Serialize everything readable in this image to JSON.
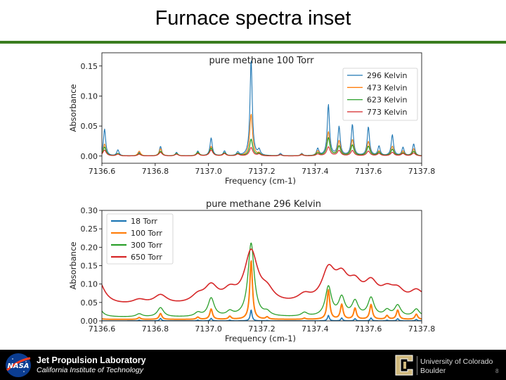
{
  "slide": {
    "title": "Furnace spectra inset",
    "page_number": "8"
  },
  "footer": {
    "nasa_logo_text": "NASA",
    "jpl_name": "Jet Propulsion Laboratory",
    "jpl_subtitle": "California Institute of Technology",
    "cu_name_line1": "University of Colorado",
    "cu_name_line2": "Boulder",
    "colors": {
      "background": "#000000",
      "cu_gold": "#cfb87c",
      "nasa_blue": "#0b3d91",
      "nasa_red": "#fc3d21"
    }
  },
  "chart_data": [
    {
      "type": "line",
      "title": "pure methane 100 Torr",
      "xlabel": "Frequency (cm-1)",
      "ylabel": "Absorbance",
      "xlim": [
        7136.6,
        7137.8
      ],
      "ylim": [
        -0.012,
        0.172
      ],
      "xticks": [
        7136.6,
        7136.8,
        7137.0,
        7137.2,
        7137.4,
        7137.6,
        7137.8
      ],
      "xtick_labels": [
        "7136.6",
        "7136.8",
        "7137.0",
        "7137.2",
        "7137.4",
        "7137.6",
        "7137.8"
      ],
      "yticks": [
        0.0,
        0.05,
        0.1,
        0.15
      ],
      "ytick_labels": [
        "0.00",
        "0.05",
        "0.10",
        "0.15"
      ],
      "grid": false,
      "legend": "top-right",
      "baseline": [
        0.0,
        0.0,
        0.0,
        0.0
      ],
      "series": [
        {
          "name": "296 Kelvin",
          "color": "#1f77b4",
          "width": 0.005
        },
        {
          "name": "473 Kelvin",
          "color": "#ff7f0e",
          "width": 0.006
        },
        {
          "name": "623 Kelvin",
          "color": "#2ca02c",
          "width": 0.007
        },
        {
          "name": "773 Kelvin",
          "color": "#d62728",
          "width": 0.0075
        }
      ],
      "peaks": [
        {
          "x": 7136.61,
          "a": [
            0.045,
            0.02,
            0.015,
            0.01
          ]
        },
        {
          "x": 7136.66,
          "a": [
            0.01,
            0.004,
            0.004,
            0.003
          ]
        },
        {
          "x": 7136.74,
          "a": [
            0.006,
            0.008,
            0.004,
            0.003
          ]
        },
        {
          "x": 7136.82,
          "a": [
            0.016,
            0.012,
            0.008,
            0.006
          ]
        },
        {
          "x": 7136.88,
          "a": [
            0.006,
            0.004,
            0.004,
            0.003
          ]
        },
        {
          "x": 7136.96,
          "a": [
            0.008,
            0.005,
            0.006,
            0.004
          ]
        },
        {
          "x": 7137.01,
          "a": [
            0.03,
            0.016,
            0.013,
            0.01
          ]
        },
        {
          "x": 7137.06,
          "a": [
            0.008,
            0.004,
            0.005,
            0.004
          ]
        },
        {
          "x": 7137.11,
          "a": [
            0.006,
            0.003,
            0.004,
            0.003
          ]
        },
        {
          "x": 7137.16,
          "a": [
            0.16,
            0.07,
            0.028,
            0.014
          ]
        },
        {
          "x": 7137.19,
          "a": [
            0.009,
            0.004,
            0.004,
            0.003
          ]
        },
        {
          "x": 7137.27,
          "a": [
            0.004,
            0.002,
            0.002,
            0.002
          ]
        },
        {
          "x": 7137.35,
          "a": [
            0.004,
            0.003,
            0.002,
            0.002
          ]
        },
        {
          "x": 7137.41,
          "a": [
            0.012,
            0.008,
            0.005,
            0.003
          ]
        },
        {
          "x": 7137.45,
          "a": [
            0.085,
            0.04,
            0.03,
            0.015
          ]
        },
        {
          "x": 7137.49,
          "a": [
            0.048,
            0.025,
            0.016,
            0.009
          ]
        },
        {
          "x": 7137.54,
          "a": [
            0.052,
            0.027,
            0.018,
            0.009
          ]
        },
        {
          "x": 7137.6,
          "a": [
            0.048,
            0.024,
            0.016,
            0.008
          ]
        },
        {
          "x": 7137.64,
          "a": [
            0.016,
            0.008,
            0.006,
            0.004
          ]
        },
        {
          "x": 7137.69,
          "a": [
            0.035,
            0.016,
            0.011,
            0.006
          ]
        },
        {
          "x": 7137.73,
          "a": [
            0.014,
            0.008,
            0.005,
            0.004
          ]
        },
        {
          "x": 7137.77,
          "a": [
            0.02,
            0.012,
            0.008,
            0.005
          ]
        }
      ]
    },
    {
      "type": "line",
      "title": "pure methane 296 Kelvin",
      "xlabel": "Frequency (cm-1)",
      "ylabel": "Absorbance",
      "xlim": [
        7136.6,
        7137.8
      ],
      "ylim": [
        0.0,
        0.3
      ],
      "xticks": [
        7136.6,
        7136.8,
        7137.0,
        7137.2,
        7137.4,
        7137.6,
        7137.8
      ],
      "xtick_labels": [
        "7136.6",
        "7136.8",
        "7137.0",
        "7137.2",
        "7137.4",
        "7137.6",
        "7137.8"
      ],
      "yticks": [
        0.0,
        0.05,
        0.1,
        0.15,
        0.2,
        0.25,
        0.3
      ],
      "ytick_labels": [
        "0.00",
        "0.05",
        "0.10",
        "0.15",
        "0.20",
        "0.25",
        "0.30"
      ],
      "grid": false,
      "legend": "top-left",
      "baseline": [
        0.0,
        0.004,
        0.01,
        0.04
      ],
      "series": [
        {
          "name": "18 Torr",
          "color": "#1f77b4",
          "width": 0.004
        },
        {
          "name": "100 Torr",
          "color": "#ff7f0e",
          "width": 0.006
        },
        {
          "name": "300 Torr",
          "color": "#2ca02c",
          "width": 0.014
        },
        {
          "name": "650 Torr",
          "color": "#d62728",
          "width": 0.03
        }
      ],
      "peaks": [
        {
          "x": 7136.58,
          "a": [
            0.0,
            0.02,
            0.05,
            0.08
          ]
        },
        {
          "x": 7136.74,
          "a": [
            0.002,
            0.005,
            0.008,
            0.012
          ]
        },
        {
          "x": 7136.82,
          "a": [
            0.007,
            0.016,
            0.025,
            0.025
          ]
        },
        {
          "x": 7136.96,
          "a": [
            0.002,
            0.006,
            0.01,
            0.02
          ]
        },
        {
          "x": 7137.01,
          "a": [
            0.007,
            0.028,
            0.05,
            0.045
          ]
        },
        {
          "x": 7137.08,
          "a": [
            0.002,
            0.008,
            0.012,
            0.03
          ]
        },
        {
          "x": 7137.16,
          "a": [
            0.03,
            0.16,
            0.2,
            0.14
          ]
        },
        {
          "x": 7137.22,
          "a": [
            0.001,
            0.006,
            0.01,
            0.03
          ]
        },
        {
          "x": 7137.36,
          "a": [
            0.0,
            0.003,
            0.01,
            0.02
          ]
        },
        {
          "x": 7137.45,
          "a": [
            0.015,
            0.08,
            0.08,
            0.085
          ]
        },
        {
          "x": 7137.5,
          "a": [
            0.008,
            0.04,
            0.05,
            0.06
          ]
        },
        {
          "x": 7137.55,
          "a": [
            0.006,
            0.03,
            0.04,
            0.045
          ]
        },
        {
          "x": 7137.61,
          "a": [
            0.008,
            0.04,
            0.05,
            0.05
          ]
        },
        {
          "x": 7137.67,
          "a": [
            0.002,
            0.01,
            0.016,
            0.03
          ]
        },
        {
          "x": 7137.71,
          "a": [
            0.006,
            0.025,
            0.03,
            0.03
          ]
        },
        {
          "x": 7137.78,
          "a": [
            0.004,
            0.014,
            0.02,
            0.03
          ]
        },
        {
          "x": 7137.86,
          "a": [
            0.0,
            0.006,
            0.02,
            0.05
          ]
        }
      ]
    }
  ]
}
